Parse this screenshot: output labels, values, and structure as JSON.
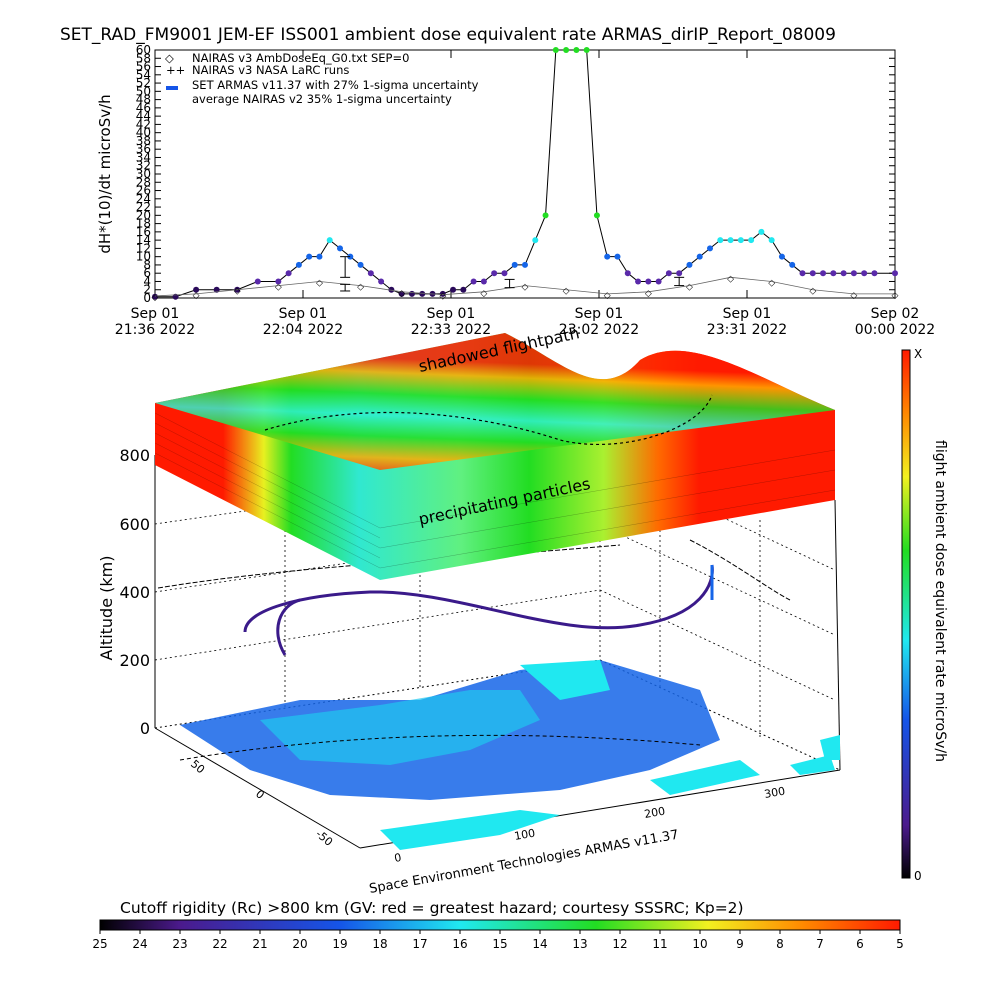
{
  "title": "SET_RAD_FM9001  JEM-EF ISS001 ambient dose equivalent rate ARMAS_dirIP_Report_08009",
  "chart_data": [
    {
      "type": "line",
      "ylabel": "dH*(10)/dt microSv/h",
      "ylim": [
        0,
        60
      ],
      "y_ticks": [
        "0",
        "2",
        "4",
        "6",
        "8",
        "10",
        "12",
        "14",
        "16",
        "18",
        "20",
        "22",
        "24",
        "26",
        "28",
        "30",
        "32",
        "34",
        "36",
        "38",
        "40",
        "42",
        "44",
        "46",
        "48",
        "50",
        "52",
        "54",
        "56",
        "58",
        "60"
      ],
      "x_ticks": [
        {
          "l1": "Sep 01",
          "l2": "21:36 2022"
        },
        {
          "l1": "Sep 01",
          "l2": "22:04 2022"
        },
        {
          "l1": "Sep 01",
          "l2": "22:33 2022"
        },
        {
          "l1": "Sep 01",
          "l2": "23:02 2022"
        },
        {
          "l1": "Sep 01",
          "l2": "23:31 2022"
        },
        {
          "l1": "Sep 02",
          "l2": "00:00 2022"
        }
      ],
      "xlim_minutes": [
        0,
        144
      ],
      "legend": [
        "NAIRAS v3 AmbDoseEq_G0.txt SEP=0",
        "NAIRAS v3 NASA LaRC runs",
        "SET ARMAS v11.37 with 27% 1-sigma uncertainty",
        "average NAIRAS v2 35% 1-sigma uncertainty"
      ],
      "series": [
        {
          "name": "SET ARMAS v11.37 with 27% 1-sigma uncertainty",
          "x": [
            0,
            4,
            8,
            12,
            16,
            20,
            24,
            26,
            28,
            30,
            32,
            34,
            36,
            38,
            40,
            42,
            44,
            46,
            48,
            50,
            52,
            54,
            56,
            58,
            60,
            62,
            64,
            66,
            68,
            70,
            72,
            74,
            76,
            78,
            80,
            82,
            84,
            86,
            88,
            90,
            92,
            94,
            96,
            98,
            100,
            102,
            104,
            106,
            108,
            110,
            112,
            114,
            116,
            118,
            120,
            122,
            124,
            126,
            128,
            130,
            132,
            134,
            136,
            138,
            140,
            144
          ],
          "y": [
            0.3,
            0.3,
            2,
            2,
            2,
            4,
            4,
            6,
            8,
            10,
            10,
            14,
            12,
            10,
            8,
            6,
            4,
            2,
            1,
            1,
            1,
            1,
            1,
            2,
            2,
            4,
            4,
            6,
            6,
            8,
            8,
            14,
            20,
            60,
            60,
            60,
            60,
            20,
            10,
            10,
            6,
            4,
            4,
            4,
            6,
            6,
            8,
            10,
            12,
            14,
            14,
            14,
            14,
            16,
            14,
            10,
            8,
            6,
            6,
            6,
            6,
            6,
            6,
            6,
            6,
            6
          ]
        },
        {
          "name": "NAIRAS v3 AmbDoseEq_G0.txt SEP=0",
          "x": [
            0,
            8,
            16,
            24,
            32,
            40,
            48,
            56,
            64,
            72,
            80,
            88,
            96,
            104,
            112,
            120,
            128,
            136,
            144
          ],
          "y": [
            0.5,
            1,
            2,
            3,
            4,
            3,
            1.5,
            0.8,
            1.5,
            3,
            2,
            1,
            1.5,
            3,
            5,
            4,
            2,
            1,
            1
          ]
        }
      ],
      "error_bars": [
        {
          "x": 37,
          "y": 7.5,
          "err": 2.5
        },
        {
          "x": 37,
          "y": 2.5,
          "err": 0.8
        },
        {
          "x": 69,
          "y": 3.5,
          "err": 1
        },
        {
          "x": 102,
          "y": 4,
          "err": 1
        }
      ]
    },
    {
      "type": "3d-orbit",
      "zlabel": "Altitude (km)",
      "z_ticks": [
        "0",
        "200",
        "400",
        "600",
        "800"
      ],
      "lat_ticks": [
        "50",
        "0",
        "-50"
      ],
      "lon_ticks": [
        "0",
        "100",
        "200",
        "300"
      ],
      "layer_labels": {
        "top": "shadowed flightpath",
        "front": "precipitating particles"
      },
      "footer_label": "Space Environment Technologies ARMAS v11.37",
      "colorbar": {
        "label": "flight ambient dose equivalent rate microSv/h",
        "max_label": "X",
        "min_label": "0"
      }
    },
    {
      "type": "colorbar",
      "title": "Cutoff rigidity (Rc) >800 km (GV: red = greatest hazard; courtesy SSSRC; Kp=2)",
      "ticks": [
        "25",
        "24",
        "23",
        "22",
        "21",
        "20",
        "19",
        "18",
        "17",
        "16",
        "15",
        "14",
        "13",
        "12",
        "11",
        "10",
        "9",
        "8",
        "7",
        "6",
        "5"
      ]
    }
  ],
  "colors": {
    "red": "#ff1a00",
    "green": "#22dd22",
    "cyan": "#20e8f0",
    "blue": "#1565e8",
    "purple": "#3a1a8a"
  }
}
